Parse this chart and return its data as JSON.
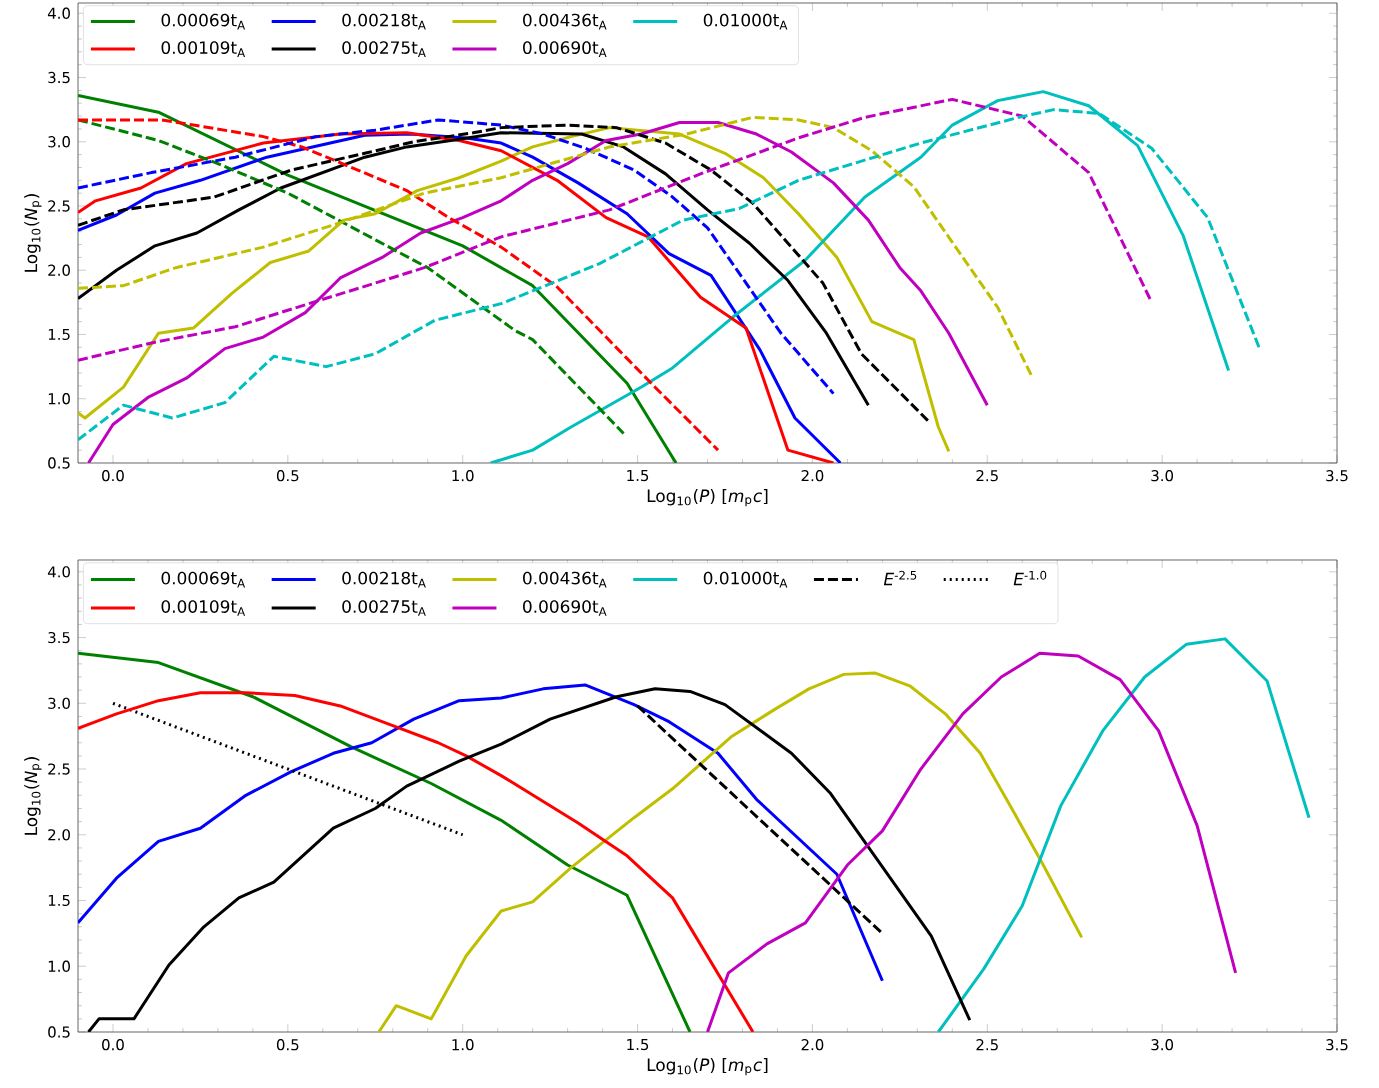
{
  "chart_data": [
    {
      "type": "line",
      "xlabel": "Log$_{10}$(*P*) [*m*$_{p}$*c*]",
      "ylabel": "Log$_{10}$(*N*$_{p}$)",
      "xlim": [
        -0.1,
        3.5
      ],
      "ylim": [
        0.5,
        4.08
      ],
      "xticks": [
        {
          "value": 0,
          "label": "0.0"
        },
        {
          "value": 0.5,
          "label": "0.5"
        },
        {
          "value": 1,
          "label": "1.0"
        },
        {
          "value": 1.5,
          "label": "1.5"
        },
        {
          "value": 2,
          "label": "2.0"
        },
        {
          "value": 2.5,
          "label": "2.5"
        },
        {
          "value": 3,
          "label": "3.0"
        },
        {
          "value": 3.5,
          "label": "3.5"
        }
      ],
      "yticks": [
        {
          "value": 0.5,
          "label": "0.5"
        },
        {
          "value": 1,
          "label": "1.0"
        },
        {
          "value": 1.5,
          "label": "1.5"
        },
        {
          "value": 2,
          "label": "2.0"
        },
        {
          "value": 2.5,
          "label": "2.5"
        },
        {
          "value": 3,
          "label": "3.0"
        },
        {
          "value": 3.5,
          "label": "3.5"
        },
        {
          "value": 4,
          "label": "4.0"
        }
      ],
      "legend": "top left",
      "series": [
        {
          "name": "0.00069t$_{A}$",
          "color": "#008000",
          "line_style": "solid",
          "x": [
            -0.1,
            0.13,
            0.5,
            1.0,
            1.2,
            1.47,
            1.61
          ],
          "values": [
            3.36,
            3.23,
            2.74,
            2.19,
            1.88,
            1.12,
            0.5
          ]
        },
        {
          "name": "0.00218t$_{A}$",
          "color": "#0000ff",
          "line_style": "solid",
          "x": [
            -0.1,
            0.01,
            0.12,
            0.25,
            0.44,
            0.72,
            0.85,
            1.01,
            1.11,
            1.2,
            1.33,
            1.47,
            1.59,
            1.71,
            1.85,
            1.95,
            2.08
          ],
          "values": [
            2.31,
            2.43,
            2.6,
            2.7,
            2.88,
            3.05,
            3.06,
            3.03,
            2.99,
            2.88,
            2.68,
            2.44,
            2.13,
            1.96,
            1.38,
            0.85,
            0.5
          ]
        },
        {
          "name": "0.00436t$_{A}$",
          "color": "#bfbf00",
          "line_style": "solid",
          "x": [
            -0.1,
            -0.08,
            0.03,
            0.13,
            0.23,
            0.34,
            0.45,
            0.56,
            0.66,
            0.75,
            0.87,
            0.99,
            1.11,
            1.2,
            1.31,
            1.42,
            1.62,
            1.75,
            1.86,
            1.96,
            2.07,
            2.17,
            2.29,
            2.36,
            2.39
          ],
          "values": [
            0.89,
            0.85,
            1.09,
            1.51,
            1.55,
            1.82,
            2.06,
            2.15,
            2.39,
            2.44,
            2.62,
            2.72,
            2.85,
            2.96,
            3.04,
            3.11,
            3.06,
            2.91,
            2.72,
            2.44,
            2.1,
            1.6,
            1.46,
            0.78,
            0.59
          ]
        },
        {
          "name": "0.01000t$_{A}$",
          "color": "#00bfbf",
          "line_style": "solid",
          "x": [
            1.08,
            1.2,
            1.31,
            1.51,
            1.6,
            1.77,
            1.98,
            2.15,
            2.31,
            2.4,
            2.53,
            2.66,
            2.79,
            2.93,
            3.06,
            3.19
          ],
          "values": [
            0.5,
            0.6,
            0.78,
            1.09,
            1.24,
            1.63,
            2.08,
            2.57,
            2.88,
            3.13,
            3.32,
            3.39,
            3.28,
            2.97,
            2.27,
            1.22
          ]
        },
        {
          "name": "0.00109t$_{A}$",
          "color": "#ff0000",
          "line_style": "solid",
          "x": [
            -0.1,
            -0.05,
            0.08,
            0.21,
            0.43,
            0.65,
            0.84,
            0.99,
            1.11,
            1.27,
            1.41,
            1.53,
            1.68,
            1.81,
            1.93,
            2.06
          ],
          "values": [
            2.45,
            2.54,
            2.64,
            2.83,
            2.99,
            3.06,
            3.07,
            3.01,
            2.93,
            2.7,
            2.41,
            2.26,
            1.79,
            1.55,
            0.6,
            0.5
          ]
        },
        {
          "name": "0.00275t$_{A}$",
          "color": "#000000",
          "line_style": "solid",
          "x": [
            -0.1,
            0.01,
            0.12,
            0.24,
            0.36,
            0.48,
            0.72,
            0.84,
            0.99,
            1.11,
            1.34,
            1.46,
            1.58,
            1.7,
            1.82,
            1.93,
            2.04,
            2.16
          ],
          "values": [
            1.78,
            2.0,
            2.19,
            2.29,
            2.47,
            2.64,
            2.88,
            2.96,
            3.02,
            3.07,
            3.06,
            2.96,
            2.75,
            2.47,
            2.21,
            1.92,
            1.51,
            0.95
          ]
        },
        {
          "name": "0.00690t$_{A}$",
          "color": "#bf00bf",
          "line_style": "solid",
          "x": [
            -0.07,
            0.0,
            0.1,
            0.21,
            0.32,
            0.43,
            0.55,
            0.65,
            0.77,
            0.88,
            1.0,
            1.11,
            1.2,
            1.3,
            1.41,
            1.51,
            1.62,
            1.73,
            1.84,
            1.94,
            2.06,
            2.16,
            2.25,
            2.31,
            2.39,
            2.5
          ],
          "values": [
            0.5,
            0.8,
            1.01,
            1.16,
            1.39,
            1.48,
            1.67,
            1.94,
            2.1,
            2.29,
            2.41,
            2.54,
            2.7,
            2.83,
            3.01,
            3.06,
            3.15,
            3.15,
            3.06,
            2.92,
            2.68,
            2.39,
            2.02,
            1.84,
            1.51,
            0.95
          ]
        },
        {
          "color": "#008000",
          "line_style": "dashed",
          "x": [
            -0.1,
            0.13,
            0.3,
            0.5,
            0.9,
            1.15,
            1.2,
            1.46
          ],
          "values": [
            3.17,
            3.01,
            2.83,
            2.6,
            2.02,
            1.53,
            1.46,
            0.73
          ]
        },
        {
          "color": "#ff0000",
          "line_style": "dashed",
          "x": [
            -0.1,
            0.14,
            0.23,
            0.43,
            0.54,
            0.7,
            0.84,
            0.96,
            1.11,
            1.27,
            1.41,
            1.55,
            1.73
          ],
          "values": [
            3.17,
            3.17,
            3.13,
            3.04,
            2.96,
            2.78,
            2.62,
            2.41,
            2.18,
            1.87,
            1.48,
            1.09,
            0.6
          ]
        },
        {
          "color": "#0000ff",
          "line_style": "dashed",
          "x": [
            -0.1,
            0.11,
            0.35,
            0.58,
            0.75,
            0.93,
            1.11,
            1.23,
            1.35,
            1.49,
            1.6,
            1.7,
            1.79,
            1.91,
            2.06
          ],
          "values": [
            2.64,
            2.76,
            2.88,
            3.04,
            3.09,
            3.17,
            3.13,
            3.06,
            2.95,
            2.78,
            2.57,
            2.33,
            1.98,
            1.51,
            1.04
          ]
        },
        {
          "color": "#000000",
          "line_style": "dashed",
          "x": [
            -0.1,
            0.03,
            0.29,
            0.51,
            0.72,
            0.86,
            1.03,
            1.11,
            1.3,
            1.44,
            1.58,
            1.71,
            1.83,
            1.93,
            2.03,
            2.14,
            2.33
          ],
          "values": [
            2.35,
            2.47,
            2.57,
            2.78,
            2.91,
            3.0,
            3.07,
            3.11,
            3.13,
            3.11,
            2.99,
            2.78,
            2.52,
            2.21,
            1.9,
            1.35,
            0.83
          ]
        },
        {
          "color": "#bfbf00",
          "line_style": "dashed",
          "x": [
            -0.1,
            0.03,
            0.18,
            0.43,
            0.65,
            0.89,
            1.11,
            1.42,
            1.64,
            1.83,
            1.96,
            2.06,
            2.17,
            2.29,
            2.43,
            2.53,
            2.63
          ],
          "values": [
            1.86,
            1.88,
            2.02,
            2.18,
            2.37,
            2.6,
            2.72,
            2.96,
            3.06,
            3.19,
            3.17,
            3.11,
            2.93,
            2.65,
            2.1,
            1.71,
            1.16
          ]
        },
        {
          "color": "#bf00bf",
          "line_style": "dashed",
          "x": [
            -0.1,
            0.12,
            0.35,
            0.56,
            0.75,
            0.89,
            1.11,
            1.42,
            1.68,
            1.96,
            2.15,
            2.4,
            2.6,
            2.79,
            2.97
          ],
          "values": [
            1.3,
            1.44,
            1.56,
            1.74,
            1.9,
            2.02,
            2.26,
            2.47,
            2.75,
            3.03,
            3.19,
            3.33,
            3.2,
            2.76,
            1.75
          ]
        },
        {
          "color": "#00bfbf",
          "line_style": "dashed",
          "x": [
            -0.1,
            0.03,
            0.17,
            0.32,
            0.46,
            0.61,
            0.75,
            0.92,
            1.11,
            1.39,
            1.63,
            1.79,
            1.96,
            2.31,
            2.59,
            2.69,
            2.82,
            2.97,
            3.13,
            3.28
          ],
          "values": [
            0.68,
            0.95,
            0.85,
            0.97,
            1.33,
            1.25,
            1.35,
            1.61,
            1.74,
            2.05,
            2.39,
            2.48,
            2.7,
            2.99,
            3.19,
            3.25,
            3.22,
            2.95,
            2.41,
            1.38
          ]
        }
      ]
    },
    {
      "type": "line",
      "xlabel": "Log$_{10}$(*P*) [*m*$_{p}$*c*]",
      "ylabel": "Log$_{10}$(*N*$_{p}$)",
      "xlim": [
        -0.1,
        3.5
      ],
      "ylim": [
        0.5,
        4.09
      ],
      "xticks": [
        {
          "value": 0,
          "label": "0.0"
        },
        {
          "value": 0.5,
          "label": "0.5"
        },
        {
          "value": 1,
          "label": "1.0"
        },
        {
          "value": 1.5,
          "label": "1.5"
        },
        {
          "value": 2,
          "label": "2.0"
        },
        {
          "value": 2.5,
          "label": "2.5"
        },
        {
          "value": 3,
          "label": "3.0"
        },
        {
          "value": 3.5,
          "label": "3.5"
        }
      ],
      "yticks": [
        {
          "value": 0.5,
          "label": "0.5"
        },
        {
          "value": 1,
          "label": "1.0"
        },
        {
          "value": 1.5,
          "label": "1.5"
        },
        {
          "value": 2,
          "label": "2.0"
        },
        {
          "value": 2.5,
          "label": "2.5"
        },
        {
          "value": 3,
          "label": "3.0"
        },
        {
          "value": 3.5,
          "label": "3.5"
        },
        {
          "value": 4,
          "label": "4.0"
        }
      ],
      "legend": "top left",
      "series": [
        {
          "name": "0.00069t$_{A}$",
          "color": "#008000",
          "line_style": "solid",
          "x": [
            -0.1,
            0.13,
            0.4,
            0.68,
            0.91,
            1.11,
            1.3,
            1.47,
            1.65
          ],
          "values": [
            3.38,
            3.31,
            3.05,
            2.67,
            2.39,
            2.11,
            1.77,
            1.54,
            0.5
          ]
        },
        {
          "name": "0.00218t$_{A}$",
          "color": "#0000ff",
          "line_style": "solid",
          "x": [
            -0.1,
            0.01,
            0.13,
            0.25,
            0.38,
            0.51,
            0.63,
            0.74,
            0.86,
            0.99,
            1.11,
            1.23,
            1.35,
            1.49,
            1.59,
            1.73,
            1.84,
            2.07,
            2.2
          ],
          "values": [
            1.33,
            1.67,
            1.95,
            2.05,
            2.3,
            2.48,
            2.62,
            2.7,
            2.88,
            3.02,
            3.04,
            3.11,
            3.14,
            2.99,
            2.86,
            2.62,
            2.27,
            1.7,
            0.89
          ]
        },
        {
          "name": "0.00436t$_{A}$",
          "color": "#bfbf00",
          "line_style": "solid",
          "x": [
            0.76,
            0.81,
            0.91,
            1.01,
            1.11,
            1.2,
            1.31,
            1.49,
            1.6,
            1.77,
            1.89,
            1.99,
            2.09,
            2.18,
            2.28,
            2.38,
            2.48,
            2.57,
            2.66,
            2.77
          ],
          "values": [
            0.5,
            0.7,
            0.6,
            1.08,
            1.42,
            1.49,
            1.75,
            2.13,
            2.35,
            2.75,
            2.95,
            3.11,
            3.22,
            3.23,
            3.13,
            2.92,
            2.62,
            2.2,
            1.77,
            1.22
          ]
        },
        {
          "name": "0.01000t$_{A}$",
          "color": "#00bfbf",
          "line_style": "solid",
          "x": [
            2.36,
            2.49,
            2.6,
            2.71,
            2.83,
            2.95,
            3.07,
            3.18,
            3.3,
            3.42
          ],
          "values": [
            0.5,
            0.98,
            1.46,
            2.22,
            2.79,
            3.2,
            3.45,
            3.49,
            3.17,
            2.13
          ]
        },
        {
          "name": "*E*$^{-2.5}$",
          "color": "#000000",
          "line_style": "dashed",
          "x": [
            1.5,
            2.2
          ],
          "values": [
            2.98,
            1.25
          ]
        },
        {
          "name": "*E*$^{-1.0}$",
          "color": "#000000",
          "line_style": "dotted",
          "x": [
            0.0,
            1.0
          ],
          "values": [
            3.0,
            2.0
          ]
        },
        {
          "name": "0.00109t$_{A}$",
          "color": "#ff0000",
          "line_style": "solid",
          "x": [
            -0.1,
            0.01,
            0.13,
            0.25,
            0.38,
            0.52,
            0.65,
            0.8,
            0.93,
            1.01,
            1.11,
            1.33,
            1.47,
            1.6,
            1.83
          ],
          "values": [
            2.81,
            2.92,
            3.02,
            3.08,
            3.08,
            3.06,
            2.98,
            2.83,
            2.7,
            2.6,
            2.45,
            2.09,
            1.84,
            1.52,
            0.5
          ]
        },
        {
          "name": "0.00275t$_{A}$",
          "color": "#000000",
          "line_style": "solid",
          "x": [
            -0.07,
            -0.04,
            0.06,
            0.16,
            0.26,
            0.36,
            0.46,
            0.63,
            0.75,
            0.84,
            0.99,
            1.11,
            1.25,
            1.44,
            1.55,
            1.65,
            1.75,
            1.94,
            2.05,
            2.34,
            2.45
          ],
          "values": [
            0.5,
            0.6,
            0.6,
            1.01,
            1.3,
            1.52,
            1.64,
            2.05,
            2.2,
            2.37,
            2.56,
            2.69,
            2.88,
            3.05,
            3.11,
            3.09,
            2.99,
            2.62,
            2.32,
            1.23,
            0.59
          ]
        },
        {
          "name": "0.00690t$_{A}$",
          "color": "#bf00bf",
          "line_style": "solid",
          "x": [
            1.7,
            1.76,
            1.87,
            1.98,
            2.1,
            2.2,
            2.31,
            2.43,
            2.54,
            2.65,
            2.76,
            2.88,
            2.99,
            3.1,
            3.21
          ],
          "values": [
            0.5,
            0.95,
            1.17,
            1.33,
            1.77,
            2.03,
            2.5,
            2.92,
            3.2,
            3.38,
            3.36,
            3.18,
            2.79,
            2.07,
            0.95
          ]
        }
      ]
    }
  ]
}
